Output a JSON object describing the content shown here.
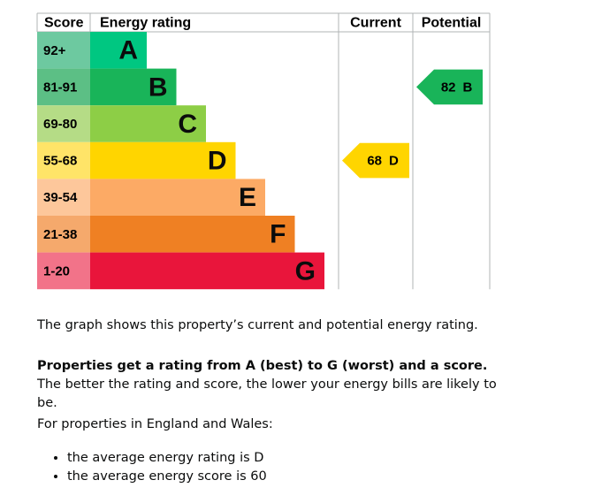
{
  "chart": {
    "headers": {
      "score": "Score",
      "rating": "Energy rating",
      "current": "Current",
      "potential": "Potential"
    },
    "bands": [
      {
        "score": "92+",
        "letter": "A",
        "color": "#00c781",
        "tint": "#6dc9a0"
      },
      {
        "score": "81-91",
        "letter": "B",
        "color": "#19b459",
        "tint": "#5cbf85"
      },
      {
        "score": "69-80",
        "letter": "C",
        "color": "#8dce46",
        "tint": "#b5dc86"
      },
      {
        "score": "55-68",
        "letter": "D",
        "color": "#ffd500",
        "tint": "#ffe468"
      },
      {
        "score": "39-54",
        "letter": "E",
        "color": "#fcaa65",
        "tint": "#fdc79b"
      },
      {
        "score": "21-38",
        "letter": "F",
        "color": "#ef8023",
        "tint": "#f5a96c"
      },
      {
        "score": "1-20",
        "letter": "G",
        "color": "#e9153b",
        "tint": "#f27389"
      }
    ],
    "current": {
      "score": "68",
      "rating": "D"
    },
    "potential": {
      "score": "82",
      "rating": "B"
    }
  },
  "text": {
    "intro": "The graph shows this property’s current and potential energy rating.",
    "rating_bold": "Properties get a rating from A (best) to G (worst) and a score.",
    "rating_rest": " The better the rating and score, the lower your energy bills are likely to be.",
    "average_intro": "For properties in England and Wales:",
    "bullets": [
      "the average energy rating is D",
      "the average energy score is 60"
    ]
  }
}
